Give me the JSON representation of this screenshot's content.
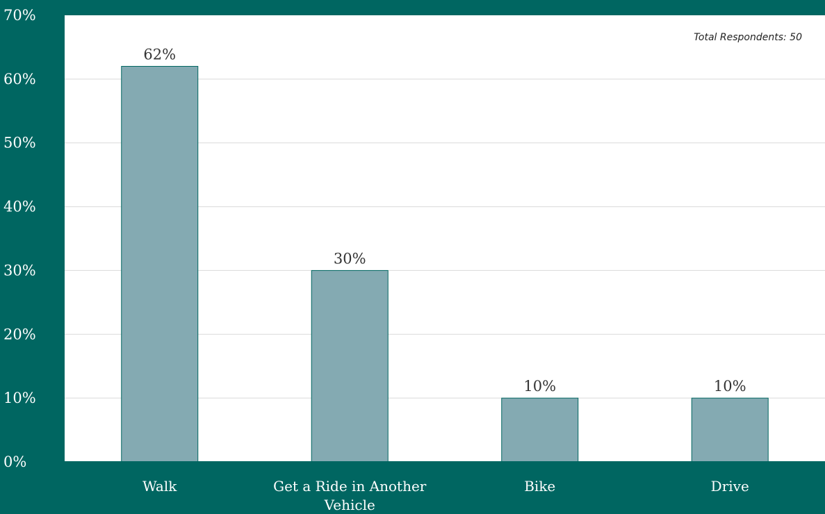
{
  "chart_data": {
    "type": "bar",
    "categories": [
      "Walk",
      "Get a Ride in Another Vehicle",
      "Bike",
      "Drive"
    ],
    "category_lines": [
      [
        "Walk"
      ],
      [
        "Get a Ride in Another",
        "Vehicle"
      ],
      [
        "Bike"
      ],
      [
        "Drive"
      ]
    ],
    "values": [
      62,
      30,
      10,
      10
    ],
    "data_labels": [
      "62%",
      "30%",
      "10%",
      "10%"
    ],
    "ylim": [
      0,
      70
    ],
    "y_ticks": [
      0,
      10,
      20,
      30,
      40,
      50,
      60,
      70
    ],
    "y_tick_labels": [
      "0%",
      "10%",
      "20%",
      "30%",
      "40%",
      "50%",
      "60%",
      "70%"
    ],
    "annotation": "Total Respondents: 50",
    "grid": true,
    "colors": {
      "frame": "#006661",
      "plot_bg": "#ffffff",
      "bar_fill": "#84aab2",
      "bar_stroke": "#006661",
      "grid": "#d9d9d9"
    }
  }
}
